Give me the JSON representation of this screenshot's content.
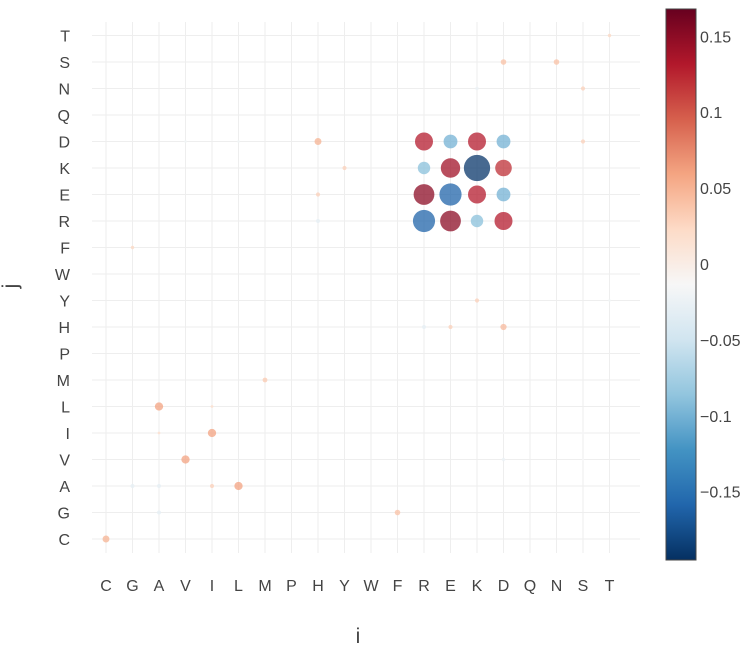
{
  "chart_data": {
    "type": "scatter",
    "subtype": "bubble-matrix",
    "title": "",
    "xlabel": "i",
    "ylabel": "j",
    "x_categories": [
      "C",
      "G",
      "A",
      "V",
      "I",
      "L",
      "M",
      "P",
      "H",
      "Y",
      "W",
      "F",
      "R",
      "E",
      "K",
      "D",
      "Q",
      "N",
      "S",
      "T"
    ],
    "y_categories": [
      "C",
      "G",
      "A",
      "V",
      "I",
      "L",
      "M",
      "P",
      "H",
      "Y",
      "W",
      "F",
      "R",
      "E",
      "K",
      "D",
      "Q",
      "N",
      "S",
      "T"
    ],
    "grid": true,
    "legend": "none",
    "colorbar": {
      "colorscale": "RdBu",
      "range": [
        -0.195,
        0.168
      ],
      "ticks": [
        0.15,
        0.1,
        0.05,
        0,
        -0.05,
        -0.1,
        -0.15
      ],
      "tick_labels": [
        "0.15",
        "0.1",
        "0.05",
        "0",
        "−0.05",
        "−0.1",
        "−0.15"
      ],
      "placement": "right"
    },
    "points": [
      {
        "x": "R",
        "y": "D",
        "value": 0.13
      },
      {
        "x": "E",
        "y": "D",
        "value": -0.1
      },
      {
        "x": "K",
        "y": "D",
        "value": 0.13
      },
      {
        "x": "D",
        "y": "D",
        "value": -0.1
      },
      {
        "x": "R",
        "y": "K",
        "value": -0.09
      },
      {
        "x": "E",
        "y": "K",
        "value": 0.14
      },
      {
        "x": "K",
        "y": "K",
        "value": -0.19
      },
      {
        "x": "D",
        "y": "K",
        "value": 0.12
      },
      {
        "x": "R",
        "y": "E",
        "value": 0.15
      },
      {
        "x": "E",
        "y": "E",
        "value": -0.16
      },
      {
        "x": "K",
        "y": "E",
        "value": 0.13
      },
      {
        "x": "D",
        "y": "E",
        "value": -0.1
      },
      {
        "x": "R",
        "y": "R",
        "value": -0.16
      },
      {
        "x": "E",
        "y": "R",
        "value": 0.15
      },
      {
        "x": "K",
        "y": "R",
        "value": -0.09
      },
      {
        "x": "D",
        "y": "R",
        "value": 0.13
      },
      {
        "x": "C",
        "y": "C",
        "value": 0.05
      },
      {
        "x": "A",
        "y": "G",
        "value": -0.03
      },
      {
        "x": "F",
        "y": "G",
        "value": 0.04
      },
      {
        "x": "G",
        "y": "A",
        "value": -0.03
      },
      {
        "x": "A",
        "y": "A",
        "value": -0.03
      },
      {
        "x": "I",
        "y": "A",
        "value": 0.03
      },
      {
        "x": "L",
        "y": "A",
        "value": 0.06
      },
      {
        "x": "V",
        "y": "V",
        "value": 0.06
      },
      {
        "x": "I",
        "y": "I",
        "value": 0.06
      },
      {
        "x": "A",
        "y": "L",
        "value": 0.06
      },
      {
        "x": "M",
        "y": "M",
        "value": 0.035
      },
      {
        "x": "H",
        "y": "D",
        "value": 0.05
      },
      {
        "x": "H",
        "y": "R",
        "value": -0.03
      },
      {
        "x": "H",
        "y": "E",
        "value": 0.03
      },
      {
        "x": "Y",
        "y": "K",
        "value": 0.03
      },
      {
        "x": "R",
        "y": "H",
        "value": -0.03
      },
      {
        "x": "E",
        "y": "H",
        "value": 0.03
      },
      {
        "x": "D",
        "y": "H",
        "value": 0.045
      },
      {
        "x": "K",
        "y": "Y",
        "value": 0.03
      },
      {
        "x": "D",
        "y": "S",
        "value": 0.04
      },
      {
        "x": "N",
        "y": "S",
        "value": 0.04
      },
      {
        "x": "S",
        "y": "N",
        "value": 0.03
      },
      {
        "x": "S",
        "y": "D",
        "value": 0.03
      },
      {
        "x": "T",
        "y": "T",
        "value": 0.025
      },
      {
        "x": "K",
        "y": "N",
        "value": -0.025
      },
      {
        "x": "Q",
        "y": "E",
        "value": -0.025
      },
      {
        "x": "V",
        "y": "D",
        "value": -0.02
      },
      {
        "x": "L",
        "y": "D",
        "value": -0.02
      },
      {
        "x": "D",
        "y": "V",
        "value": -0.025
      },
      {
        "x": "D",
        "y": "L",
        "value": -0.015
      },
      {
        "x": "D",
        "y": "I",
        "value": -0.015
      },
      {
        "x": "G",
        "y": "F",
        "value": 0.025
      },
      {
        "x": "I",
        "y": "L",
        "value": 0.02
      },
      {
        "x": "A",
        "y": "I",
        "value": 0.02
      },
      {
        "x": "T",
        "y": "Y",
        "value": -0.02
      },
      {
        "x": "N",
        "y": "K",
        "value": -0.015
      },
      {
        "x": "S",
        "y": "I",
        "value": -0.015
      },
      {
        "x": "S",
        "y": "V",
        "value": -0.015
      }
    ]
  },
  "colors": {
    "background": "#ffffff",
    "grid": "#eeeeee",
    "text": "#444444"
  }
}
